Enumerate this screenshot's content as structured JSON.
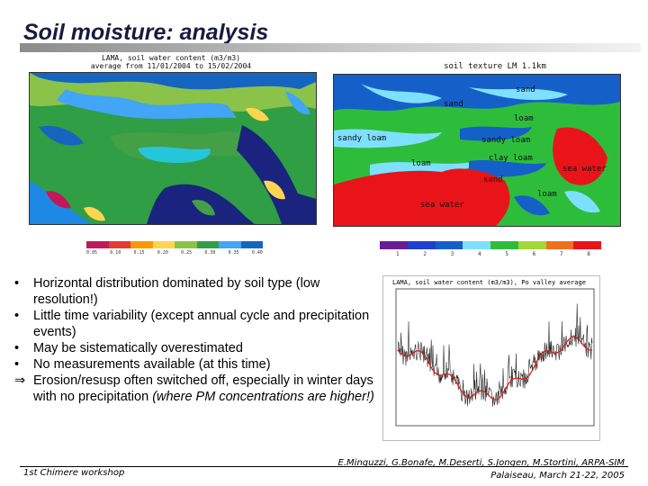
{
  "slide": {
    "title": "Soil moisture: analysis"
  },
  "left_map": {
    "caption_line1": "LAMA, soil water content (m3/m3)",
    "caption_line2": "average from 11/01/2004 to 15/02/2004",
    "colorbar_ticks": [
      "0.05",
      "0.10",
      "0.15",
      "0.20",
      "0.25",
      "0.30",
      "0.35",
      "0.40"
    ],
    "colors": {
      "low": "#c2185b",
      "mid": "#ffd54f",
      "high": "#1e88e5",
      "water": "#1a237e"
    }
  },
  "right_map": {
    "caption": "soil texture LM 1.1km",
    "labels": [
      "sand",
      "sand",
      "loam",
      "sandy loam",
      "sandy loam",
      "clay loam",
      "loam",
      "sand",
      "sea water",
      "loam",
      "sea water"
    ],
    "colorbar_ticks": [
      "1",
      "2",
      "3",
      "4",
      "5",
      "6",
      "7",
      "8"
    ],
    "colors": {
      "sea": "#e8141a",
      "loam": "#2ebd3a",
      "sand": "#1560c8",
      "clay": "#7ee0ff"
    }
  },
  "bullets": [
    {
      "mark": "•",
      "text": "Horizontal distribution dominated by soil type (low resolution!)"
    },
    {
      "mark": "•",
      "text": "Little time variability (except annual cycle and precipitation events)"
    },
    {
      "mark": "•",
      "text": "May be sistematically overestimated"
    },
    {
      "mark": "•",
      "text": "No measurements available (at this time)"
    },
    {
      "mark": "⇒",
      "text": "Erosion/resusp often switched off, especially in winter days with no precipitation ",
      "italic": "(where PM concentrations are higher!)"
    }
  ],
  "timeseries": {
    "title": "LAMA, soil water content (m3/m3), Po valley average",
    "colors": {
      "raw": "#222222",
      "smooth": "#d62020"
    }
  },
  "footer": {
    "left": "1st Chimere workshop",
    "right_line1": "E.Minguzzi, G.Bonafe, M.Deserti, S.Jongen, M.Stortini, ARPA-SIM",
    "right_line2": "Palaiseau, March 21-22, 2005"
  }
}
